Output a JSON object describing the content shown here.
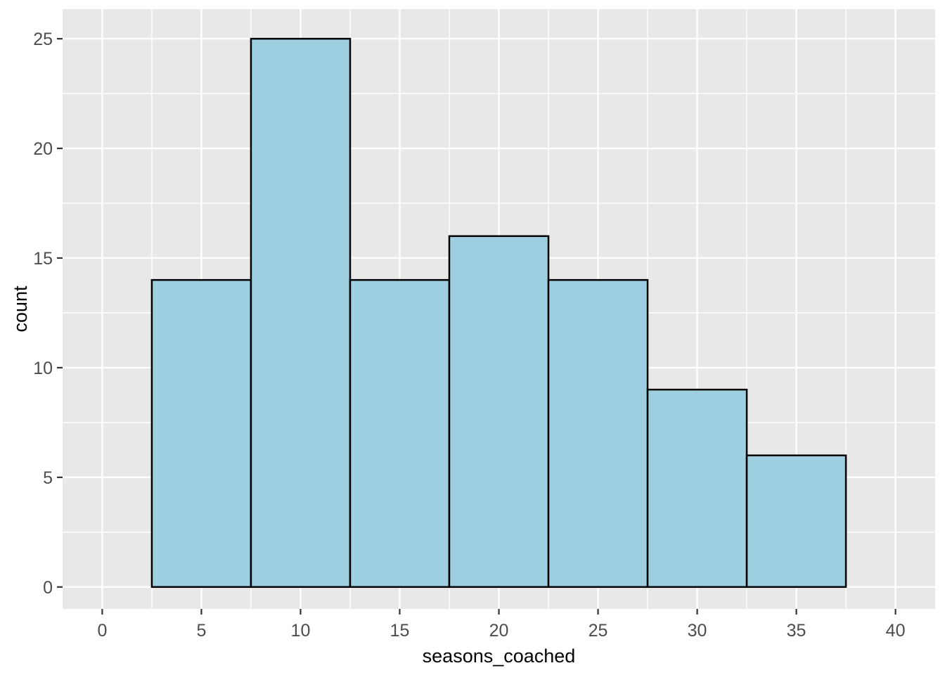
{
  "figure": {
    "kind": "ggplot-histogram"
  },
  "chart_data": {
    "type": "bar",
    "subtype": "histogram",
    "title": "",
    "xlabel": "seasons_coached",
    "ylabel": "count",
    "bins": [
      {
        "x0": 2.5,
        "x1": 7.5,
        "count": 14
      },
      {
        "x0": 7.5,
        "x1": 12.5,
        "count": 25
      },
      {
        "x0": 12.5,
        "x1": 17.5,
        "count": 14
      },
      {
        "x0": 17.5,
        "x1": 22.5,
        "count": 16
      },
      {
        "x0": 22.5,
        "x1": 27.5,
        "count": 14
      },
      {
        "x0": 27.5,
        "x1": 32.5,
        "count": 9
      },
      {
        "x0": 32.5,
        "x1": 37.5,
        "count": 6
      }
    ],
    "x_ticks": [
      0,
      5,
      10,
      15,
      20,
      25,
      30,
      35,
      40
    ],
    "y_ticks": [
      0,
      5,
      10,
      15,
      20,
      25
    ],
    "x_minor_step": 2.5,
    "y_minor_step": 2.5,
    "xlim": [
      -2,
      42
    ],
    "ylim": [
      -1,
      26.35
    ],
    "grid": "major-and-minor",
    "legend": "none",
    "style": {
      "page_bg": "#FFFFFF",
      "panel_bg": "#E8E8E8",
      "grid_color": "#FFFFFF",
      "bar_fill": "#9DCFE0",
      "bar_stroke": "#000000",
      "tick_mark_color": "#333333",
      "tick_label_color": "#4D4D4D",
      "axis_title_color": "#000000"
    }
  }
}
